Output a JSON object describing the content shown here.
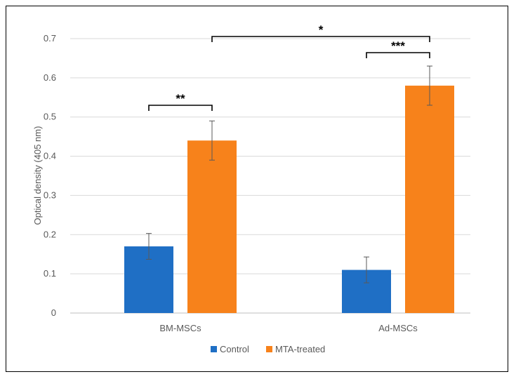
{
  "chart_data": {
    "type": "bar",
    "categories": [
      "BM-MSCs",
      "Ad-MSCs"
    ],
    "series": [
      {
        "name": "Control",
        "values": [
          0.17,
          0.11
        ],
        "errors": [
          0.033,
          0.033
        ],
        "color": "#1f6fc5"
      },
      {
        "name": "MTA-treated",
        "values": [
          0.44,
          0.58
        ],
        "errors": [
          0.05,
          0.05
        ],
        "color": "#f7821b"
      }
    ],
    "title": "",
    "xlabel": "",
    "ylabel": "Optical density (405 nm)",
    "ylim": [
      0,
      0.7
    ],
    "yticks": [
      "0",
      "0.1",
      "0.2",
      "0.3",
      "0.4",
      "0.5",
      "0.6",
      "0.7"
    ],
    "grid": true,
    "legend_position": "bottom",
    "annotations": [
      {
        "label": "**",
        "between": [
          "BM-MSCs Control",
          "BM-MSCs MTA-treated"
        ]
      },
      {
        "label": "***",
        "between": [
          "Ad-MSCs Control",
          "Ad-MSCs MTA-treated"
        ]
      },
      {
        "label": "*",
        "between": [
          "BM-MSCs MTA-treated",
          "Ad-MSCs MTA-treated"
        ]
      }
    ]
  }
}
